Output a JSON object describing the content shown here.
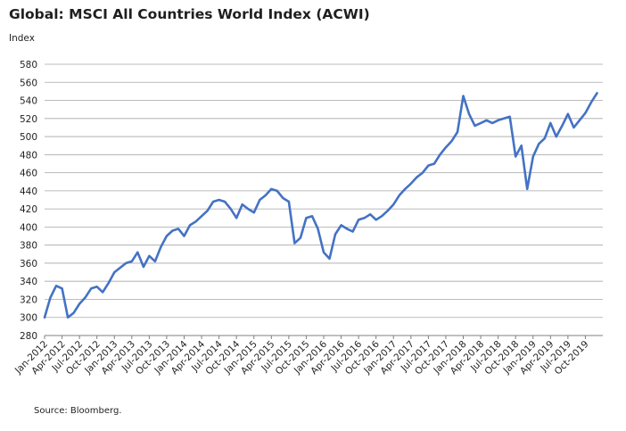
{
  "title": "Global: MSCI All Countries World Index (ACWI)",
  "source": "Source: Bloomberg.",
  "colors": {
    "line": "#4472c4",
    "grid": "#a6a6a6",
    "axis": "#7f7f7f"
  },
  "chart_data": {
    "type": "line",
    "title": "Global: MSCI All Countries World Index (ACWI)",
    "ylabel": "Index",
    "xlabel": "",
    "ylim": [
      280,
      580
    ],
    "yticks": [
      280,
      300,
      320,
      340,
      360,
      380,
      400,
      420,
      440,
      460,
      480,
      500,
      520,
      540,
      560,
      580
    ],
    "xlim": [
      "2012-01",
      "2019-12"
    ],
    "xtick_labels": [
      "Jan-2012",
      "Apr-2012",
      "Jul-2012",
      "Oct-2012",
      "Jan-2013",
      "Apr-2013",
      "Jul-2013",
      "Oct-2013",
      "Jan-2014",
      "Apr-2014",
      "Jul-2014",
      "Oct-2014",
      "Jan-2015",
      "Apr-2015",
      "Jul-2015",
      "Oct-2015",
      "Jan-2016",
      "Apr-2016",
      "Jul-2016",
      "Oct-2016",
      "Jan-2017",
      "Apr-2017",
      "Jul-2017",
      "Oct-2017",
      "Jan-2018",
      "Apr-2018",
      "Jul-2018",
      "Oct-2018",
      "Jan-2019",
      "Apr-2019",
      "Jul-2019",
      "Oct-2019"
    ],
    "grid": true,
    "legend": "none",
    "series": [
      {
        "x": [
          "2012-01",
          "2012-02",
          "2012-03",
          "2012-04",
          "2012-05",
          "2012-06",
          "2012-07",
          "2012-08",
          "2012-09",
          "2012-10",
          "2012-11",
          "2012-12",
          "2013-01",
          "2013-02",
          "2013-03",
          "2013-04",
          "2013-05",
          "2013-06",
          "2013-07",
          "2013-08",
          "2013-09",
          "2013-10",
          "2013-11",
          "2013-12",
          "2014-01",
          "2014-02",
          "2014-03",
          "2014-04",
          "2014-05",
          "2014-06",
          "2014-07",
          "2014-08",
          "2014-09",
          "2014-10",
          "2014-11",
          "2014-12",
          "2015-01",
          "2015-02",
          "2015-03",
          "2015-04",
          "2015-05",
          "2015-06",
          "2015-07",
          "2015-08",
          "2015-09",
          "2015-10",
          "2015-11",
          "2015-12",
          "2016-01",
          "2016-02",
          "2016-03",
          "2016-04",
          "2016-05",
          "2016-06",
          "2016-07",
          "2016-08",
          "2016-09",
          "2016-10",
          "2016-11",
          "2016-12",
          "2017-01",
          "2017-02",
          "2017-03",
          "2017-04",
          "2017-05",
          "2017-06",
          "2017-07",
          "2017-08",
          "2017-09",
          "2017-10",
          "2017-11",
          "2017-12",
          "2018-01",
          "2018-02",
          "2018-03",
          "2018-04",
          "2018-05",
          "2018-06",
          "2018-07",
          "2018-08",
          "2018-09",
          "2018-10",
          "2018-11",
          "2018-12",
          "2019-01",
          "2019-02",
          "2019-03",
          "2019-04",
          "2019-05",
          "2019-06",
          "2019-07",
          "2019-08",
          "2019-09",
          "2019-10",
          "2019-11",
          "2019-12"
        ],
        "y": [
          300,
          322,
          335,
          332,
          300,
          305,
          315,
          322,
          332,
          334,
          328,
          338,
          350,
          355,
          360,
          362,
          372,
          356,
          368,
          362,
          378,
          390,
          396,
          398,
          390,
          402,
          406,
          412,
          418,
          428,
          430,
          428,
          420,
          410,
          425,
          420,
          416,
          430,
          435,
          442,
          440,
          432,
          428,
          382,
          388,
          410,
          412,
          398,
          372,
          365,
          392,
          402,
          398,
          395,
          408,
          410,
          414,
          408,
          412,
          418,
          425,
          435,
          442,
          448,
          455,
          460,
          468,
          470,
          480,
          488,
          495,
          505,
          545,
          525,
          512,
          515,
          518,
          515,
          518,
          520,
          522,
          478,
          490,
          442,
          478,
          492,
          498,
          515,
          500,
          512,
          525,
          510,
          518,
          526,
          538,
          548
        ]
      }
    ]
  }
}
